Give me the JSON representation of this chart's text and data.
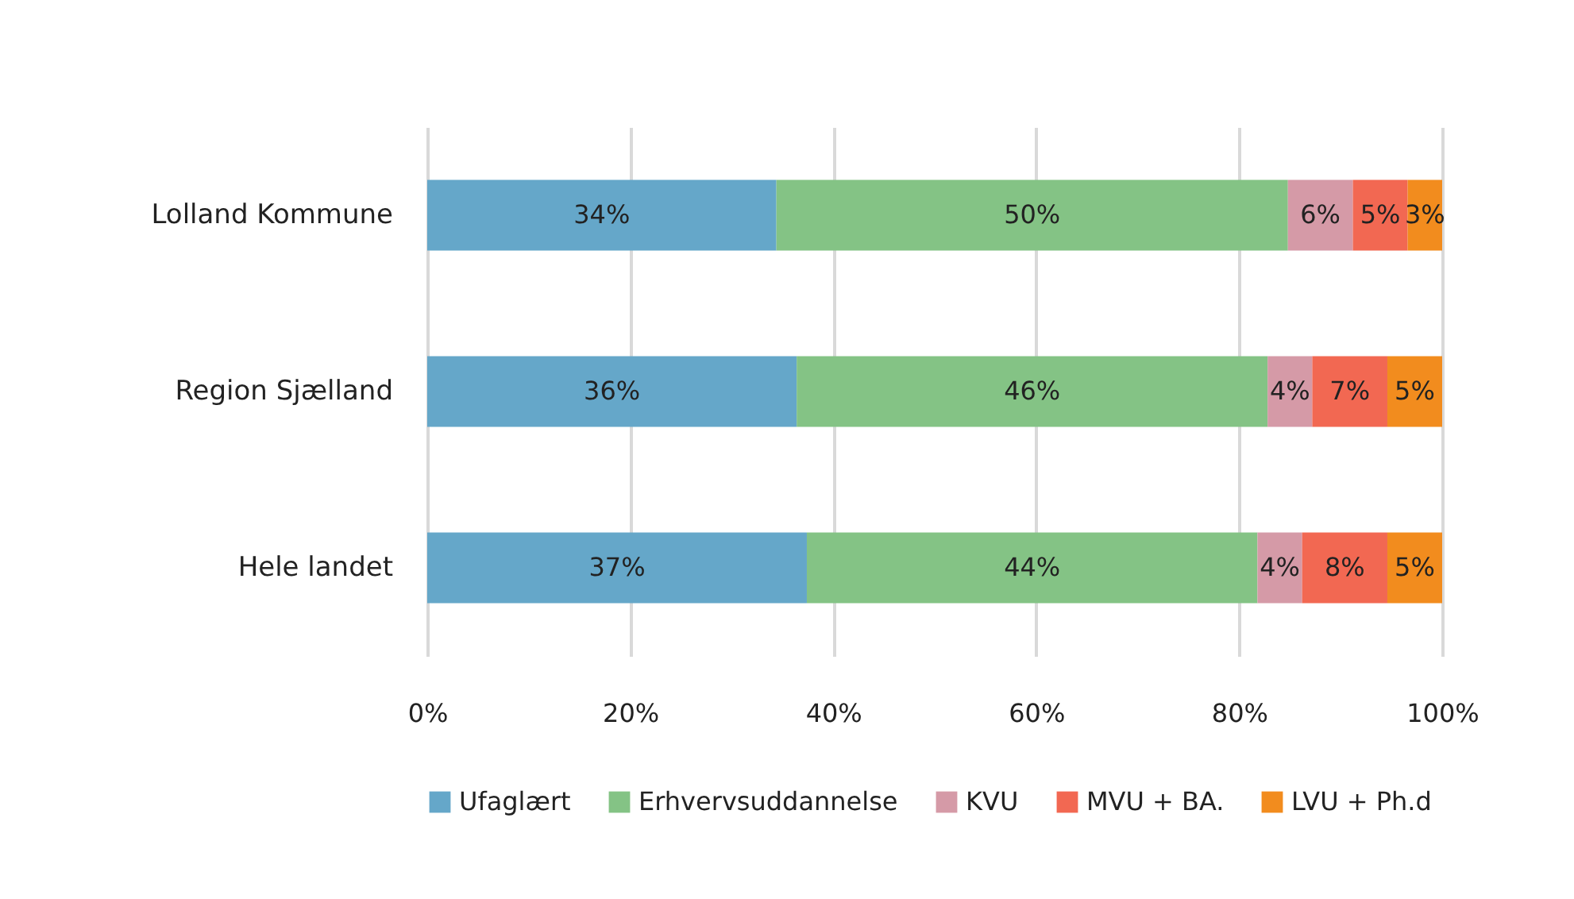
{
  "chart_data": {
    "type": "bar",
    "orientation": "horizontal",
    "stacked": true,
    "categories": [
      "Lolland Kommune",
      "Region Sjælland",
      "Hele landet"
    ],
    "series": [
      {
        "name": "Ufaglært",
        "color": "#65a7c9",
        "values": [
          34.4,
          36.4,
          37.4
        ],
        "value_labels": [
          "34%",
          "36%",
          "37%"
        ]
      },
      {
        "name": "Erhvervsuddannelse",
        "color": "#84c385",
        "values": [
          50.4,
          46.4,
          44.4
        ],
        "value_labels": [
          "50%",
          "46%",
          "44%"
        ]
      },
      {
        "name": "KVU",
        "color": "#d59aa7",
        "values": [
          6.4,
          4.4,
          4.4
        ],
        "value_labels": [
          "6%",
          "4%",
          "4%"
        ]
      },
      {
        "name": "MVU + BA.",
        "color": "#f26852",
        "values": [
          5.4,
          7.4,
          8.4
        ],
        "value_labels": [
          "5%",
          "7%",
          "8%"
        ]
      },
      {
        "name": "LVU + Ph.d",
        "color": "#f28c1e",
        "values": [
          3.4,
          5.4,
          5.4
        ],
        "value_labels": [
          "3%",
          "5%",
          "5%"
        ]
      }
    ],
    "xlim": [
      0,
      100
    ],
    "xticks": [
      {
        "value": 0,
        "label": "0%"
      },
      {
        "value": 20,
        "label": "20%"
      },
      {
        "value": 40,
        "label": "40%"
      },
      {
        "value": 60,
        "label": "60%"
      },
      {
        "value": 80,
        "label": "80%"
      },
      {
        "value": 100,
        "label": "100%"
      }
    ],
    "grid": "x",
    "legend": "bottom"
  }
}
